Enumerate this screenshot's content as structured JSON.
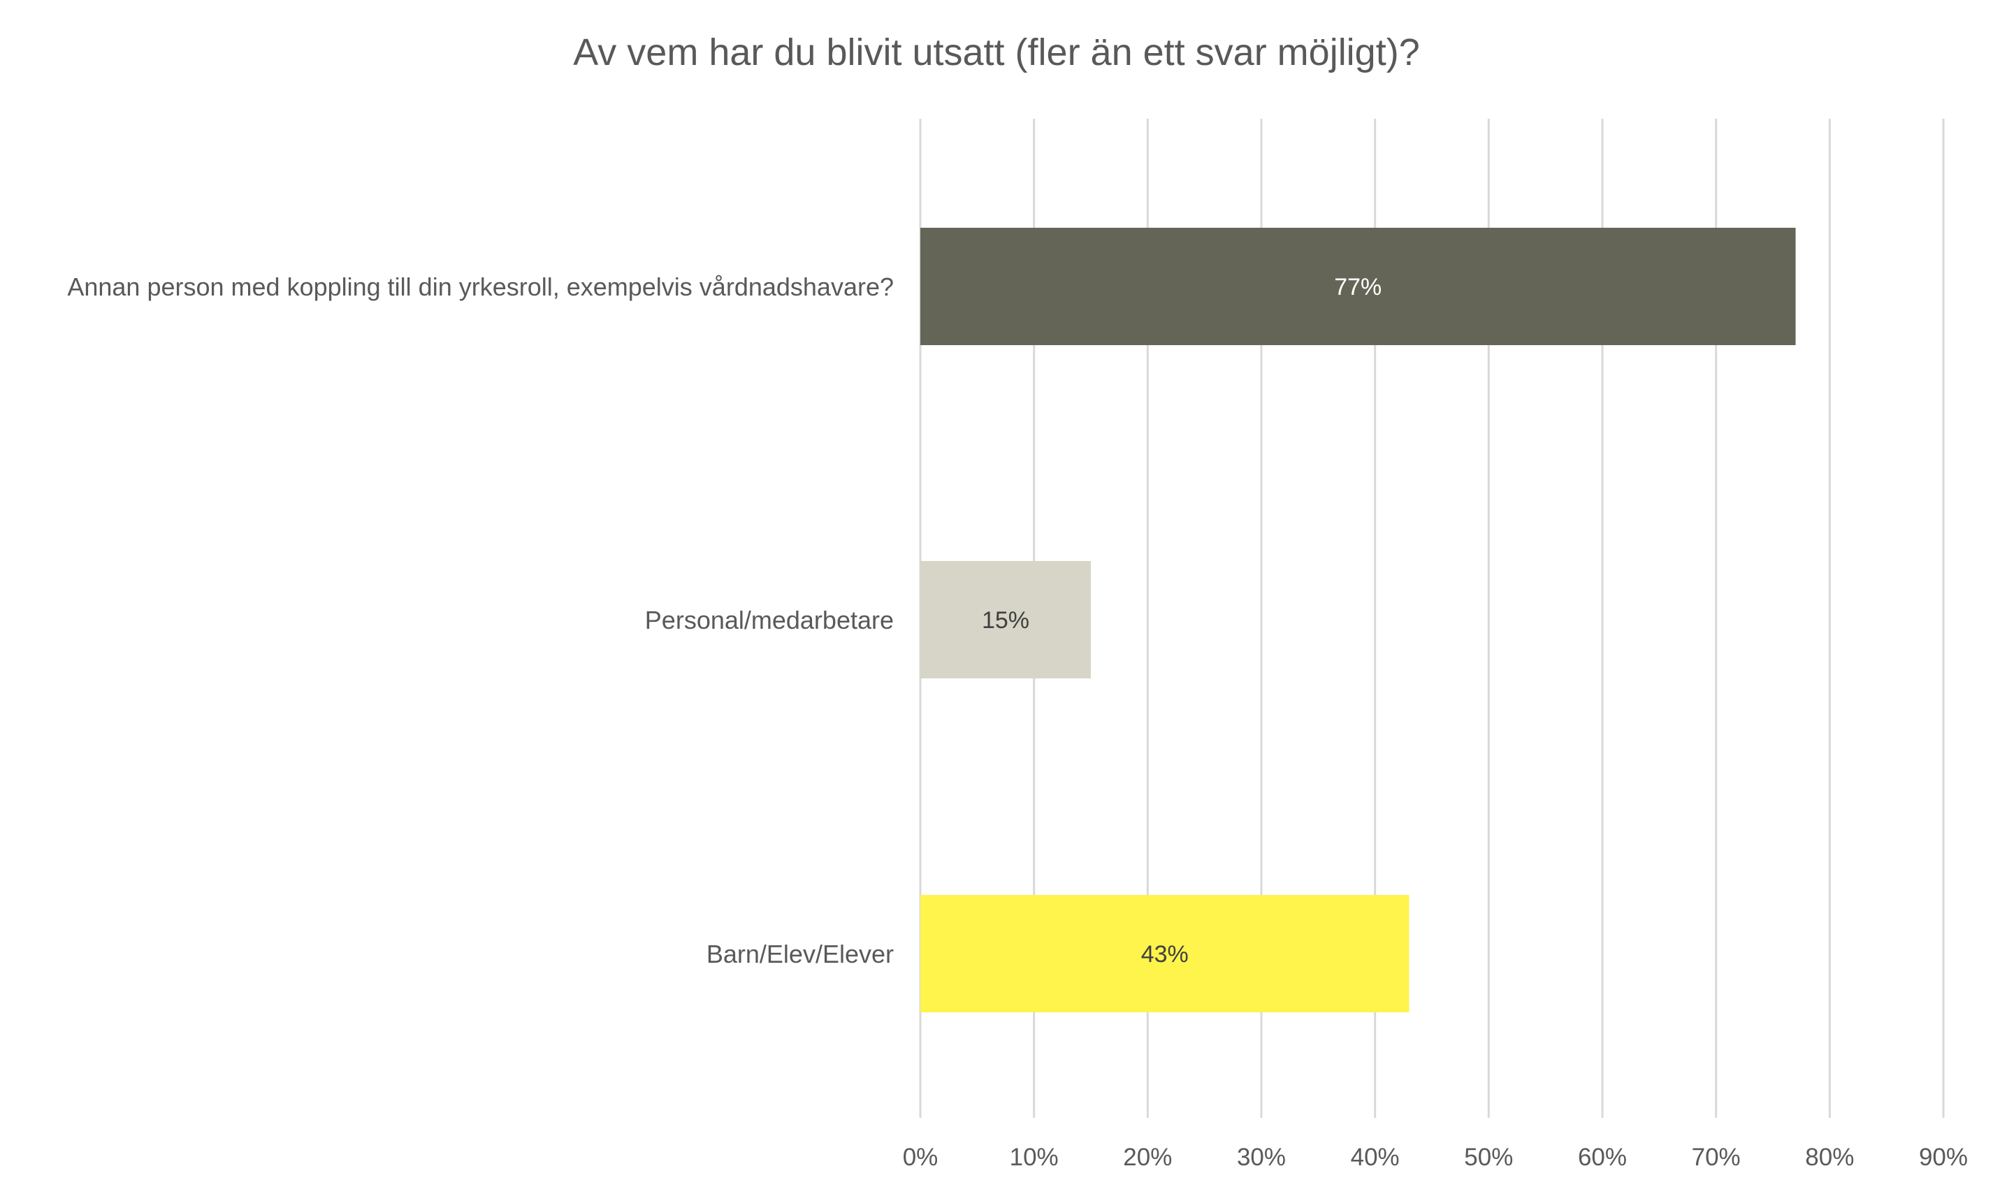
{
  "chart_data": {
    "type": "bar",
    "orientation": "horizontal",
    "title": "Av vem har du blivit utsatt (fler än ett svar möjligt)?",
    "xlabel": "",
    "ylabel": "",
    "categories": [
      "Annan person med koppling till din yrkesroll, exempelvis vårdnadshavare?",
      "Personal/medarbetare",
      "Barn/Elev/Elever"
    ],
    "values": [
      0.77,
      0.15,
      0.43
    ],
    "data_labels": [
      "77%",
      "15%",
      "43%"
    ],
    "bar_colors": [
      "#646556",
      "#d6d5c7",
      "#fef44c"
    ],
    "data_label_colors": [
      "#ffffff",
      "#404040",
      "#404040"
    ],
    "xlim": [
      0,
      0.9
    ],
    "x_ticks": [
      0,
      0.1,
      0.2,
      0.3,
      0.4,
      0.5,
      0.6,
      0.7,
      0.8,
      0.9
    ],
    "x_tick_labels": [
      "0%",
      "10%",
      "20%",
      "30%",
      "40%",
      "50%",
      "60%",
      "70%",
      "80%",
      "90%"
    ],
    "grid": true,
    "legend": "none",
    "gridline_color": "#d9d9d9",
    "text_color": "#595959"
  }
}
